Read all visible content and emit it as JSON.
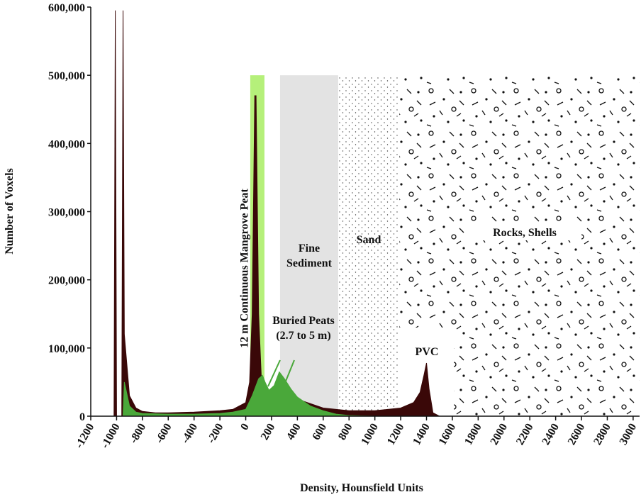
{
  "chart_data": {
    "type": "area",
    "xlabel": "Density, Hounsfield Units",
    "ylabel": "Number of Voxels",
    "xlim": [
      -1200,
      3050
    ],
    "ylim": [
      0,
      600000
    ],
    "xticks": [
      -1200,
      -1000,
      -800,
      -600,
      -400,
      -200,
      0,
      200,
      400,
      600,
      800,
      1000,
      1200,
      1400,
      1600,
      1800,
      2000,
      2200,
      2400,
      2600,
      2800,
      3000
    ],
    "yticks": [
      0,
      {
        "value": 100000,
        "label": "100,000"
      },
      {
        "value": 200000,
        "label": "200,000"
      },
      {
        "value": 300000,
        "label": "300,000"
      },
      {
        "value": 400000,
        "label": "400,000"
      },
      {
        "value": 500000,
        "label": "500,000"
      },
      {
        "value": 600000,
        "label": "600,000"
      }
    ],
    "regions": [
      {
        "label": "",
        "x": [
          35,
          145
        ],
        "top": 500000,
        "fill": "#b5f07a"
      },
      {
        "label": "Fine Sediment",
        "x": [
          266,
          716
        ],
        "top": 500000,
        "fill": "#e3e3e3"
      },
      {
        "label": "Sand",
        "x": [
          716,
          1190
        ],
        "top": 500000,
        "fill": "sand"
      },
      {
        "label": "Rocks, Shells",
        "x": [
          1190,
          3050
        ],
        "top": 500000,
        "fill": "rocks"
      }
    ],
    "series": [
      {
        "color": "#3a0808",
        "x": [
          -1020,
          -1010,
          -1000,
          -960,
          -950,
          -940,
          -900,
          -850,
          -800,
          -700,
          -600,
          -400,
          -200,
          -100,
          0,
          30,
          50,
          70,
          80,
          100,
          120,
          150,
          200,
          300,
          400,
          600,
          800,
          1000,
          1200,
          1300,
          1350,
          1380,
          1400,
          1420,
          1450,
          1500,
          1600
        ],
        "values": [
          0,
          595000,
          0,
          0,
          595000,
          120000,
          30000,
          12000,
          7000,
          5000,
          5000,
          6000,
          8000,
          10000,
          20000,
          50000,
          150000,
          470000,
          470000,
          150000,
          60000,
          40000,
          30000,
          35000,
          25000,
          12000,
          8000,
          8000,
          12000,
          20000,
          35000,
          60000,
          78000,
          40000,
          5000,
          0,
          0
        ]
      },
      {
        "color": "#4aa83a",
        "x": [
          -950,
          -940,
          -900,
          -850,
          -800,
          -600,
          -400,
          -200,
          -100,
          0,
          50,
          100,
          130,
          150,
          180,
          220,
          260,
          280,
          300,
          350,
          400,
          500,
          600,
          700,
          800,
          1000
        ],
        "values": [
          0,
          50000,
          15000,
          6000,
          4000,
          3000,
          3000,
          4000,
          6000,
          10000,
          30000,
          55000,
          60000,
          50000,
          38000,
          45000,
          65000,
          60000,
          55000,
          40000,
          28000,
          15000,
          8000,
          3000,
          1000,
          0
        ]
      }
    ],
    "annotations": [
      "12 m Continuous Mangrove Peat",
      "Buried Peats (2.7 to 5 m)",
      "PVC"
    ]
  }
}
